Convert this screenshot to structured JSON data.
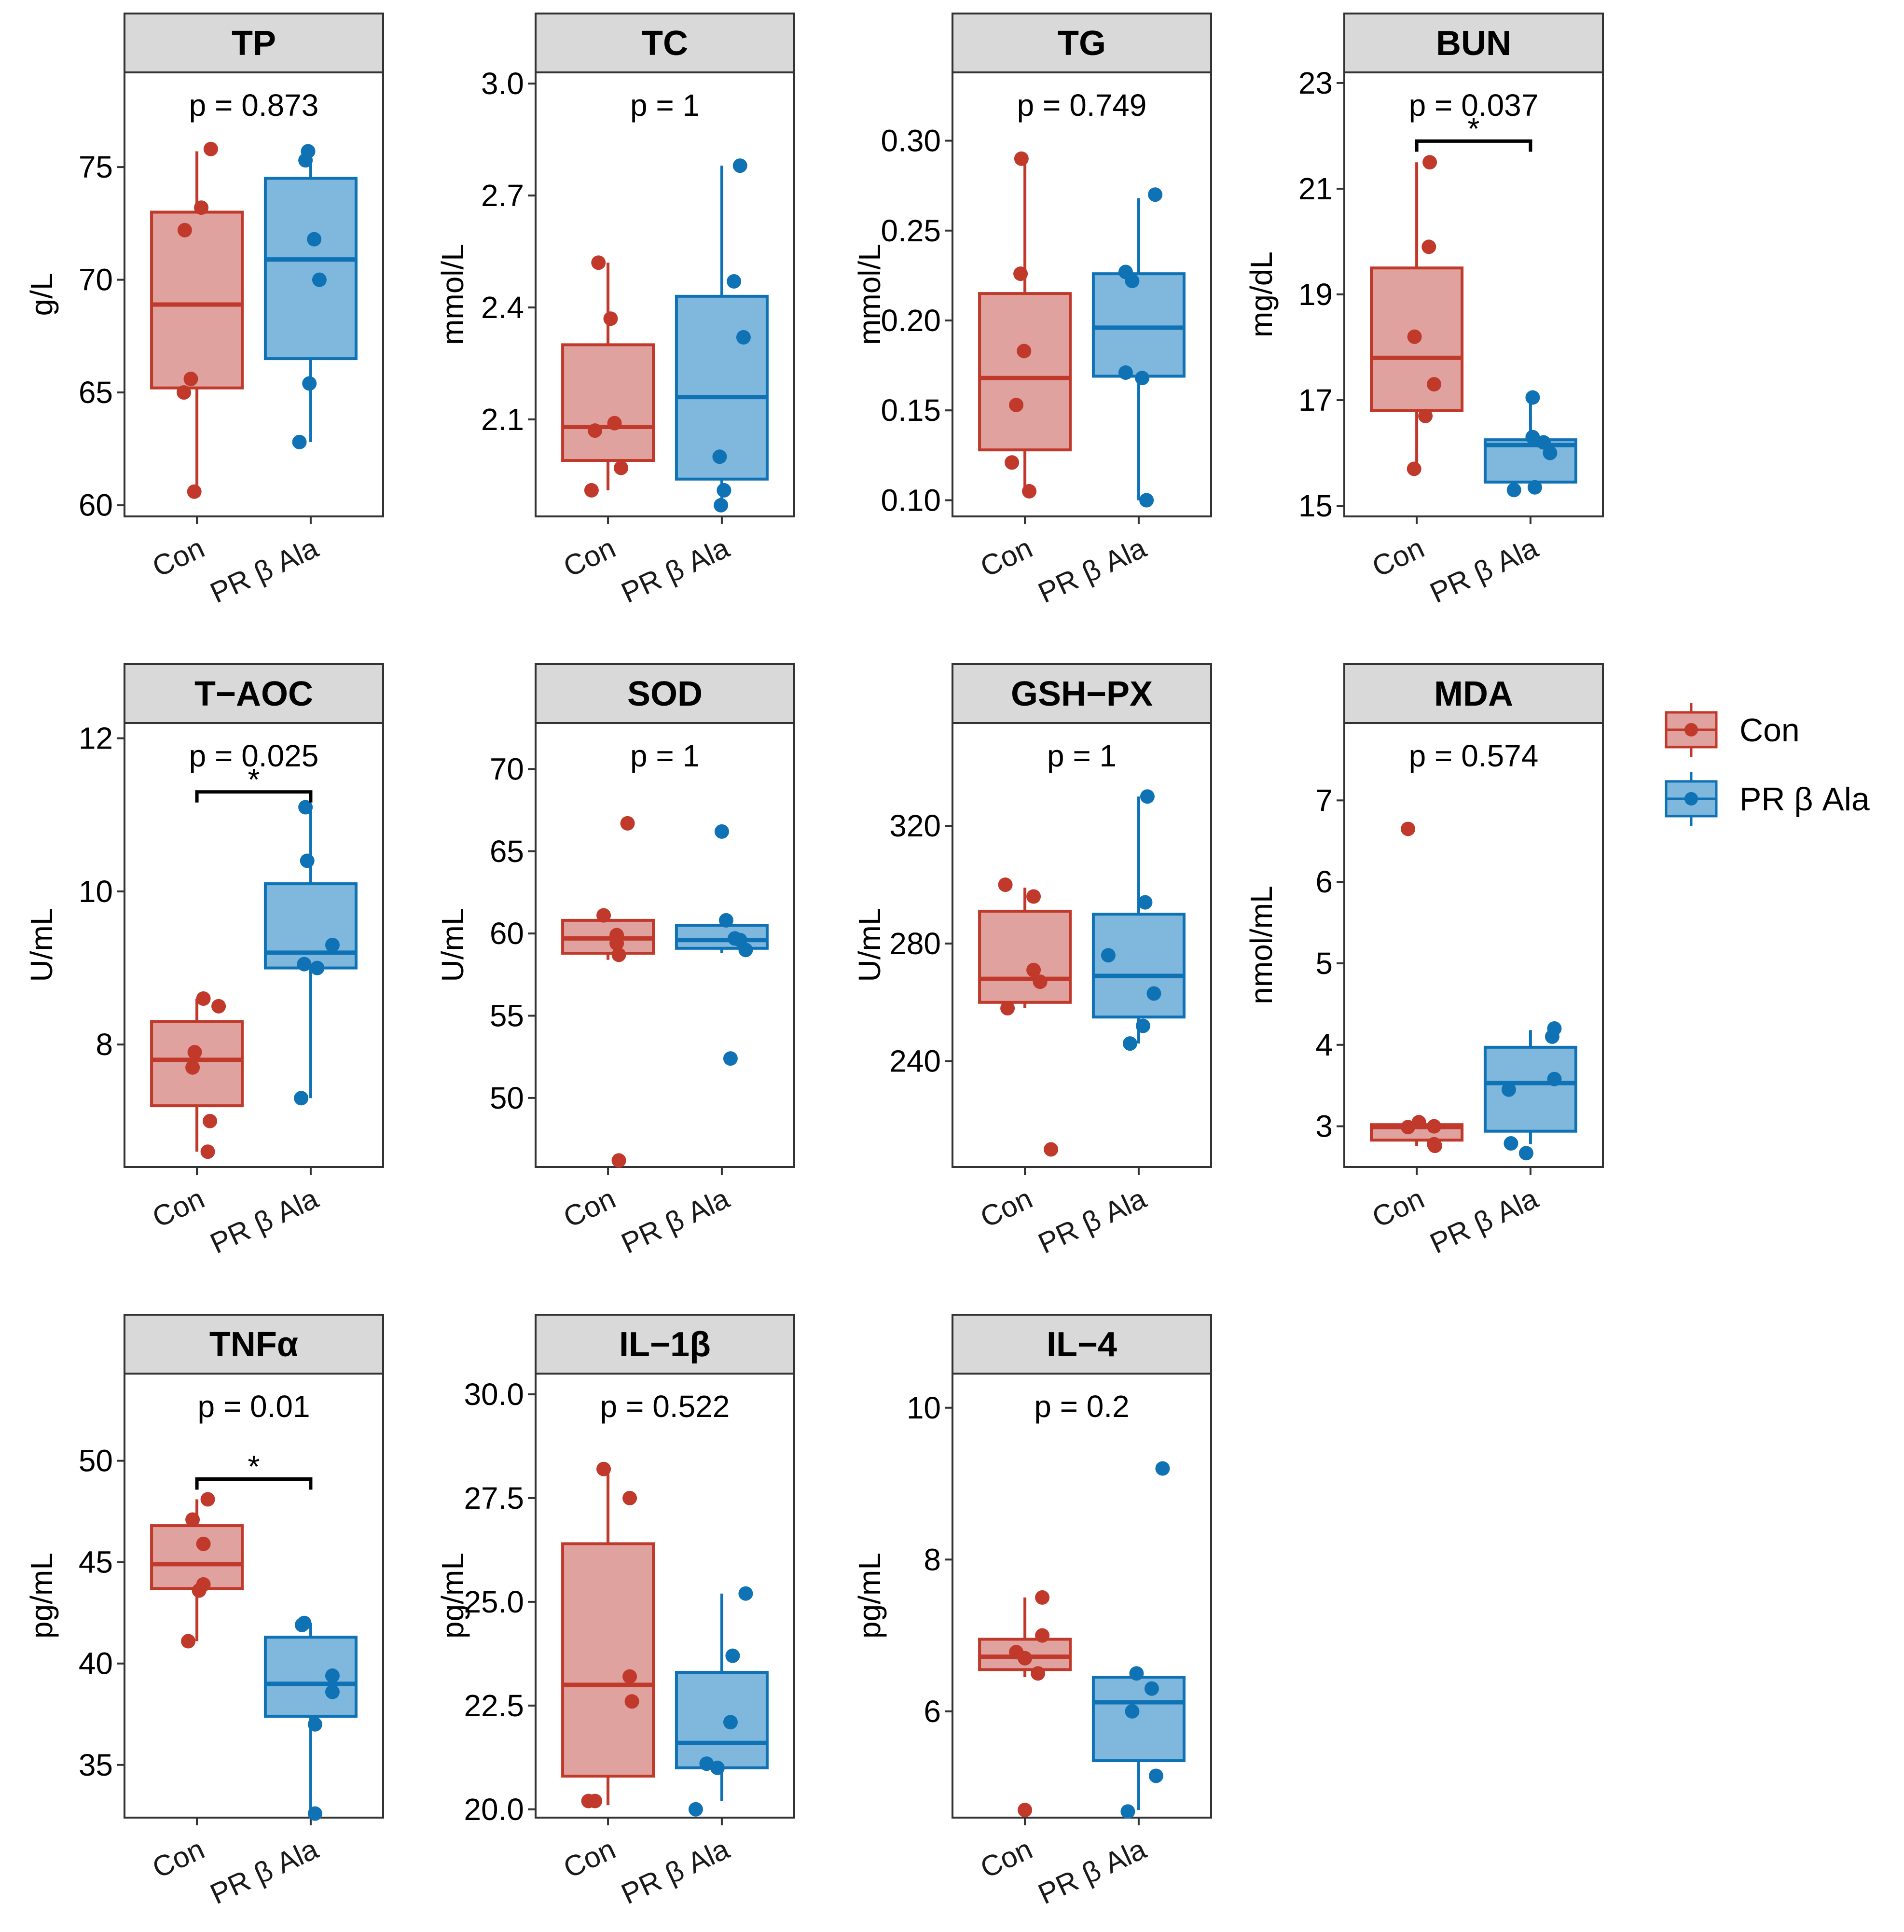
{
  "colors": {
    "Con": "#C0392B",
    "Con_fill": "#DFA29E",
    "PR": "#0E72B5",
    "PR_fill": "#7FB7DD",
    "strip_bg": "#D9D9D9"
  },
  "legend": [
    "Con",
    "PR β Ala"
  ],
  "chart_data": [
    {
      "type": "box",
      "title": "TP",
      "ylabel": "g/L",
      "ylim": [
        59.5,
        79.2
      ],
      "yticks": [
        60,
        65,
        70,
        75
      ],
      "ytick_labels": [
        "60",
        "65",
        "70",
        "75"
      ],
      "categories": [
        "Con",
        "PR β Ala"
      ],
      "pvalue": "p = 0.873",
      "star": "",
      "series": [
        {
          "name": "Con",
          "box": [
            65.2,
            68.9,
            73.0
          ],
          "whiskers": [
            60.6,
            75.7
          ],
          "points": [
            [
              -0.28,
              72.2
            ],
            [
              -0.14,
              65.6
            ],
            [
              0.1,
              73.2
            ],
            [
              -0.06,
              60.6
            ],
            [
              -0.3,
              65.0
            ],
            [
              0.32,
              75.8
            ]
          ]
        },
        {
          "name": "PR β Ala",
          "box": [
            66.5,
            70.9,
            74.5
          ],
          "whiskers": [
            62.8,
            75.7
          ],
          "points": [
            [
              -0.12,
              75.3
            ],
            [
              -0.06,
              75.7
            ],
            [
              0.08,
              71.8
            ],
            [
              0.2,
              70.0
            ],
            [
              -0.03,
              65.4
            ],
            [
              -0.26,
              62.8
            ]
          ]
        }
      ]
    },
    {
      "type": "box",
      "title": "TC",
      "ylabel": "mmol/L",
      "ylim": [
        1.84,
        3.03
      ],
      "yticks": [
        2.1,
        2.4,
        2.7,
        3.0
      ],
      "ytick_labels": [
        "2.1",
        "2.4",
        "2.7",
        "3.0"
      ],
      "categories": [
        "Con",
        "PR β Ala"
      ],
      "pvalue": "p = 1",
      "star": "",
      "series": [
        {
          "name": "Con",
          "box": [
            1.99,
            2.08,
            2.3
          ],
          "whiskers": [
            1.91,
            2.52
          ],
          "points": [
            [
              -0.22,
              2.52
            ],
            [
              0.06,
              2.37
            ],
            [
              -0.3,
              2.07
            ],
            [
              0.15,
              2.09
            ],
            [
              -0.38,
              1.91
            ],
            [
              0.3,
              1.97
            ]
          ]
        },
        {
          "name": "PR β Ala",
          "box": [
            1.94,
            2.16,
            2.43
          ],
          "whiskers": [
            1.87,
            2.78
          ],
          "points": [
            [
              0.42,
              2.78
            ],
            [
              0.28,
              2.47
            ],
            [
              0.5,
              2.32
            ],
            [
              -0.05,
              2.0
            ],
            [
              0.05,
              1.91
            ],
            [
              -0.02,
              1.87
            ]
          ]
        }
      ]
    },
    {
      "type": "box",
      "title": "TG",
      "ylabel": "mmol/L",
      "ylim": [
        0.091,
        0.338
      ],
      "yticks": [
        0.1,
        0.15,
        0.2,
        0.25,
        0.3
      ],
      "ytick_labels": [
        "0.10",
        "0.15",
        "0.20",
        "0.25",
        "0.30"
      ],
      "categories": [
        "Con",
        "PR β Ala"
      ],
      "pvalue": "p = 0.749",
      "star": "",
      "series": [
        {
          "name": "Con",
          "box": [
            0.128,
            0.168,
            0.215
          ],
          "whiskers": [
            0.105,
            0.29
          ],
          "points": [
            [
              -0.08,
              0.29
            ],
            [
              -0.1,
              0.226
            ],
            [
              -0.02,
              0.183
            ],
            [
              -0.2,
              0.153
            ],
            [
              -0.3,
              0.121
            ],
            [
              0.1,
              0.105
            ]
          ]
        },
        {
          "name": "PR β Ala",
          "box": [
            0.169,
            0.196,
            0.226
          ],
          "whiskers": [
            0.1,
            0.268
          ],
          "points": [
            [
              0.38,
              0.27
            ],
            [
              -0.3,
              0.227
            ],
            [
              -0.15,
              0.222
            ],
            [
              -0.3,
              0.171
            ],
            [
              0.08,
              0.168
            ],
            [
              0.18,
              0.1
            ]
          ]
        }
      ]
    },
    {
      "type": "box",
      "title": "BUN",
      "ylabel": "mg/dL",
      "ylim": [
        14.8,
        23.2
      ],
      "yticks": [
        15,
        17,
        19,
        21,
        23
      ],
      "ytick_labels": [
        "15",
        "17",
        "19",
        "21",
        "23"
      ],
      "categories": [
        "Con",
        "PR β Ala"
      ],
      "pvalue": "p = 0.037",
      "star": "*",
      "bracket": 21.9,
      "series": [
        {
          "name": "Con",
          "box": [
            16.8,
            17.8,
            19.5
          ],
          "whiskers": [
            15.6,
            21.5
          ],
          "points": [
            [
              0.3,
              21.5
            ],
            [
              0.28,
              19.9
            ],
            [
              -0.05,
              18.2
            ],
            [
              0.4,
              17.3
            ],
            [
              0.2,
              16.7
            ],
            [
              -0.06,
              15.7
            ]
          ]
        },
        {
          "name": "PR β Ala",
          "box": [
            15.45,
            16.15,
            16.25
          ],
          "whiskers": [
            15.3,
            17.05
          ],
          "points": [
            [
              0.05,
              17.05
            ],
            [
              0.05,
              16.3
            ],
            [
              0.3,
              16.2
            ],
            [
              0.45,
              16.0
            ],
            [
              -0.38,
              15.3
            ],
            [
              0.1,
              15.35
            ]
          ]
        }
      ]
    },
    {
      "type": "box",
      "title": "T−AOC",
      "ylabel": "U/mL",
      "ylim": [
        6.4,
        12.2
      ],
      "yticks": [
        8,
        10,
        12
      ],
      "ytick_labels": [
        "8",
        "10",
        "12"
      ],
      "categories": [
        "Con",
        "PR β Ala"
      ],
      "pvalue": "p = 0.025",
      "star": "*",
      "bracket": 11.3,
      "series": [
        {
          "name": "Con",
          "box": [
            7.2,
            7.8,
            8.3
          ],
          "whiskers": [
            6.6,
            8.6
          ],
          "points": [
            [
              0.15,
              8.6
            ],
            [
              0.5,
              8.5
            ],
            [
              -0.05,
              7.9
            ],
            [
              -0.1,
              7.7
            ],
            [
              0.3,
              7.0
            ],
            [
              0.25,
              6.6
            ]
          ]
        },
        {
          "name": "PR β Ala",
          "box": [
            9.0,
            9.2,
            10.1
          ],
          "whiskers": [
            7.3,
            11.1
          ],
          "points": [
            [
              -0.12,
              11.1
            ],
            [
              -0.08,
              10.4
            ],
            [
              -0.15,
              9.05
            ],
            [
              0.15,
              9.0
            ],
            [
              0.5,
              9.3
            ],
            [
              -0.22,
              7.3
            ]
          ]
        }
      ]
    },
    {
      "type": "box",
      "title": "SOD",
      "ylabel": "U/mL",
      "ylim": [
        45.8,
        72.8
      ],
      "yticks": [
        50,
        55,
        60,
        65,
        70
      ],
      "ytick_labels": [
        "50",
        "55",
        "60",
        "65",
        "70"
      ],
      "categories": [
        "Con",
        "PR β Ala"
      ],
      "pvalue": "p = 1",
      "star": "",
      "series": [
        {
          "name": "Con",
          "box": [
            58.8,
            59.7,
            60.8
          ],
          "whiskers": [
            58.4,
            61.2
          ],
          "points": [
            [
              0.45,
              66.7
            ],
            [
              -0.1,
              61.1
            ],
            [
              0.2,
              59.9
            ],
            [
              0.2,
              59.4
            ],
            [
              0.25,
              58.7
            ],
            [
              0.25,
              46.2
            ]
          ]
        },
        {
          "name": "PR β Ala",
          "box": [
            59.1,
            59.6,
            60.5
          ],
          "whiskers": [
            58.8,
            60.8
          ],
          "points": [
            [
              0.0,
              66.2
            ],
            [
              0.1,
              60.8
            ],
            [
              0.3,
              59.7
            ],
            [
              0.42,
              59.6
            ],
            [
              0.55,
              59.0
            ],
            [
              0.2,
              52.4
            ]
          ]
        }
      ]
    },
    {
      "type": "box",
      "title": "GSH−PX",
      "ylabel": "U/mL",
      "ylim": [
        204,
        355
      ],
      "yticks": [
        240,
        280,
        320
      ],
      "ytick_labels": [
        "240",
        "280",
        "320"
      ],
      "categories": [
        "Con",
        "PR β Ala"
      ],
      "pvalue": "p = 1",
      "star": "",
      "series": [
        {
          "name": "Con",
          "box": [
            260,
            268,
            291
          ],
          "whiskers": [
            258,
            299
          ],
          "points": [
            [
              -0.45,
              300
            ],
            [
              0.2,
              296
            ],
            [
              0.2,
              271
            ],
            [
              0.35,
              267
            ],
            [
              -0.4,
              258
            ],
            [
              0.6,
              210
            ]
          ]
        },
        {
          "name": "PR β Ala",
          "box": [
            255,
            269,
            290
          ],
          "whiskers": [
            246,
            330
          ],
          "points": [
            [
              0.2,
              330
            ],
            [
              0.15,
              294
            ],
            [
              -0.7,
              276
            ],
            [
              0.35,
              263
            ],
            [
              0.1,
              252
            ],
            [
              -0.2,
              246
            ]
          ]
        }
      ]
    },
    {
      "type": "box",
      "title": "MDA",
      "ylabel": "nmol/mL",
      "ylim": [
        2.5,
        7.95
      ],
      "yticks": [
        3,
        4,
        5,
        6,
        7
      ],
      "ytick_labels": [
        "3",
        "4",
        "5",
        "6",
        "7"
      ],
      "categories": [
        "Con",
        "PR β Ala"
      ],
      "pvalue": "p = 0.574",
      "star": "",
      "series": [
        {
          "name": "Con",
          "box": [
            2.83,
            2.99,
            3.02
          ],
          "whiskers": [
            2.76,
            3.05
          ],
          "points": [
            [
              -0.2,
              6.65
            ],
            [
              0.05,
              3.05
            ],
            [
              0.4,
              3.0
            ],
            [
              -0.2,
              2.99
            ],
            [
              0.4,
              2.78
            ],
            [
              0.42,
              2.76
            ]
          ]
        },
        {
          "name": "PR β Ala",
          "box": [
            2.94,
            3.53,
            3.97
          ],
          "whiskers": [
            2.78,
            4.18
          ],
          "points": [
            [
              0.55,
              4.2
            ],
            [
              0.5,
              4.1
            ],
            [
              0.55,
              3.58
            ],
            [
              -0.5,
              3.45
            ],
            [
              -0.45,
              2.79
            ],
            [
              -0.1,
              2.67
            ]
          ]
        }
      ]
    },
    {
      "type": "box",
      "title": "TNFα",
      "ylabel": "pg/mL",
      "ylim": [
        32.4,
        54.3
      ],
      "yticks": [
        35,
        40,
        45,
        50
      ],
      "ytick_labels": [
        "35",
        "40",
        "45",
        "50"
      ],
      "categories": [
        "Con",
        "PR β Ala"
      ],
      "pvalue": "p = 0.01",
      "star": "*",
      "bracket": 49.1,
      "series": [
        {
          "name": "Con",
          "box": [
            43.7,
            44.9,
            46.8
          ],
          "whiskers": [
            41.1,
            48.1
          ],
          "points": [
            [
              0.25,
              48.1
            ],
            [
              -0.1,
              47.1
            ],
            [
              0.15,
              45.9
            ],
            [
              0.15,
              43.9
            ],
            [
              0.05,
              43.6
            ],
            [
              -0.2,
              41.1
            ]
          ]
        },
        {
          "name": "PR β Ala",
          "box": [
            37.4,
            39.0,
            41.3
          ],
          "whiskers": [
            32.6,
            42.0
          ],
          "points": [
            [
              -0.2,
              41.9
            ],
            [
              -0.15,
              42.0
            ],
            [
              0.5,
              39.4
            ],
            [
              0.5,
              38.6
            ],
            [
              0.1,
              37.0
            ],
            [
              0.1,
              32.6
            ]
          ]
        }
      ]
    },
    {
      "type": "box",
      "title": "IL−1β",
      "ylabel": "pg/mL",
      "ylim": [
        19.8,
        30.5
      ],
      "yticks": [
        20.0,
        22.5,
        25.0,
        27.5,
        30.0
      ],
      "ytick_labels": [
        "20.0",
        "22.5",
        "25.0",
        "27.5",
        "30.0"
      ],
      "categories": [
        "Con",
        "PR β Ala"
      ],
      "pvalue": "p = 0.522",
      "star": "",
      "series": [
        {
          "name": "Con",
          "box": [
            20.8,
            23.0,
            26.4
          ],
          "whiskers": [
            20.1,
            28.2
          ],
          "points": [
            [
              -0.1,
              28.2
            ],
            [
              0.5,
              27.5
            ],
            [
              0.5,
              23.2
            ],
            [
              0.55,
              22.6
            ],
            [
              -0.45,
              20.2
            ],
            [
              -0.3,
              20.2
            ]
          ]
        },
        {
          "name": "PR β Ala",
          "box": [
            21.0,
            21.6,
            23.3
          ],
          "whiskers": [
            20.2,
            25.2
          ],
          "points": [
            [
              0.55,
              25.2
            ],
            [
              0.25,
              23.7
            ],
            [
              0.2,
              22.1
            ],
            [
              -0.35,
              21.1
            ],
            [
              -0.1,
              21.0
            ],
            [
              -0.6,
              20.0
            ]
          ]
        }
      ]
    },
    {
      "type": "box",
      "title": "IL−4",
      "ylabel": "pg/mL",
      "ylim": [
        4.6,
        10.45
      ],
      "yticks": [
        6,
        8,
        10
      ],
      "ytick_labels": [
        "6",
        "8",
        "10"
      ],
      "categories": [
        "Con",
        "PR β Ala"
      ],
      "pvalue": "p = 0.2",
      "star": "",
      "series": [
        {
          "name": "Con",
          "box": [
            6.55,
            6.72,
            6.95
          ],
          "whiskers": [
            6.45,
            7.5
          ],
          "points": [
            [
              0.4,
              7.5
            ],
            [
              0.4,
              7.0
            ],
            [
              -0.2,
              6.78
            ],
            [
              0.0,
              6.7
            ],
            [
              0.3,
              6.5
            ],
            [
              0.0,
              4.7
            ]
          ]
        },
        {
          "name": "PR β Ala",
          "box": [
            5.35,
            6.12,
            6.45
          ],
          "whiskers": [
            4.7,
            6.45
          ],
          "points": [
            [
              0.55,
              9.2
            ],
            [
              -0.05,
              6.5
            ],
            [
              0.3,
              6.3
            ],
            [
              -0.15,
              6.0
            ],
            [
              0.4,
              5.15
            ],
            [
              -0.25,
              4.68
            ]
          ]
        }
      ]
    }
  ]
}
